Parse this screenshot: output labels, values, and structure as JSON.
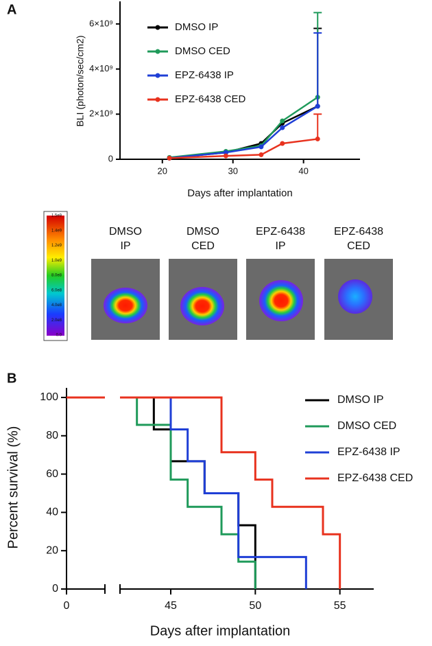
{
  "panel_labels": [
    "A",
    "B"
  ],
  "images": {
    "labels": [
      [
        "DMSO",
        "IP"
      ],
      [
        "DMSO",
        "CED"
      ],
      [
        "EPZ-6438",
        "IP"
      ],
      [
        "EPZ-6438",
        "CED"
      ]
    ],
    "colorbar_labels": [
      "1.5e9",
      "1.4e9",
      "1.2e9",
      "1.0e9",
      "8.0e8",
      "6.0e8",
      "4.0e8",
      "2.0e8",
      "0.0"
    ]
  },
  "chart_data": [
    {
      "type": "line",
      "y_label": "BLI (photon/sec/cm2)",
      "x_label": "Days after implantation",
      "x": [
        21,
        29,
        34,
        37,
        42
      ],
      "xlim": [
        14,
        48
      ],
      "xticks": [
        20,
        30,
        40
      ],
      "ylim": [
        0,
        7000000000
      ],
      "yticks": [
        0,
        {
          "value": 2000000000,
          "label": "2×10⁹"
        },
        {
          "value": 4000000000,
          "label": "4×10⁹"
        },
        {
          "value": 6000000000,
          "label": "6×10⁹"
        }
      ],
      "series": [
        {
          "name": "DMSO IP",
          "color": "#000000",
          "values": [
            60000000,
            300000000,
            700000000,
            1600000000,
            2350000000
          ],
          "errors": [
            null,
            null,
            null,
            null,
            3450000000
          ]
        },
        {
          "name": "DMSO CED",
          "color": "#1f9a5a",
          "values": [
            80000000,
            350000000,
            600000000,
            1700000000,
            2750000000
          ],
          "errors": [
            null,
            null,
            null,
            null,
            3750000000
          ]
        },
        {
          "name": "EPZ-6438 IP",
          "color": "#1f3fd6",
          "values": [
            50000000,
            300000000,
            550000000,
            1400000000,
            2350000000
          ],
          "errors": [
            null,
            null,
            null,
            null,
            3250000000
          ]
        },
        {
          "name": "EPZ-6438 CED",
          "color": "#e8321e",
          "values": [
            50000000,
            150000000,
            200000000,
            700000000,
            900000000
          ],
          "errors": [
            null,
            null,
            null,
            null,
            1100000000
          ]
        }
      ]
    },
    {
      "type": "step",
      "y_label": "Percent survival (%)",
      "x_label": "Days after implantation",
      "xlim": [
        0,
        57
      ],
      "x_break": [
        2,
        42
      ],
      "xticks": [
        0,
        45,
        50,
        55
      ],
      "ylim": [
        0,
        105
      ],
      "yticks": [
        0,
        20,
        40,
        60,
        80,
        100
      ],
      "series": [
        {
          "name": "DMSO IP",
          "color": "#000000",
          "x": [
            0,
            44,
            45,
            47,
            49,
            50
          ],
          "values": [
            100,
            83.3,
            66.7,
            50,
            33.3,
            0
          ]
        },
        {
          "name": "DMSO CED",
          "color": "#1f9a5a",
          "x": [
            0,
            43,
            45,
            46,
            48,
            49,
            50
          ],
          "values": [
            100,
            85.7,
            57.1,
            42.9,
            28.6,
            14.3,
            0
          ]
        },
        {
          "name": "EPZ-6438 IP",
          "color": "#1f3fd6",
          "x": [
            0,
            45,
            46,
            47,
            49,
            53
          ],
          "values": [
            100,
            83.3,
            66.7,
            50,
            16.7,
            0
          ]
        },
        {
          "name": "EPZ-6438 CED",
          "color": "#e8321e",
          "x": [
            0,
            48,
            50,
            51,
            54,
            55
          ],
          "values": [
            100,
            71.4,
            57.1,
            42.9,
            28.6,
            0
          ]
        }
      ]
    }
  ]
}
